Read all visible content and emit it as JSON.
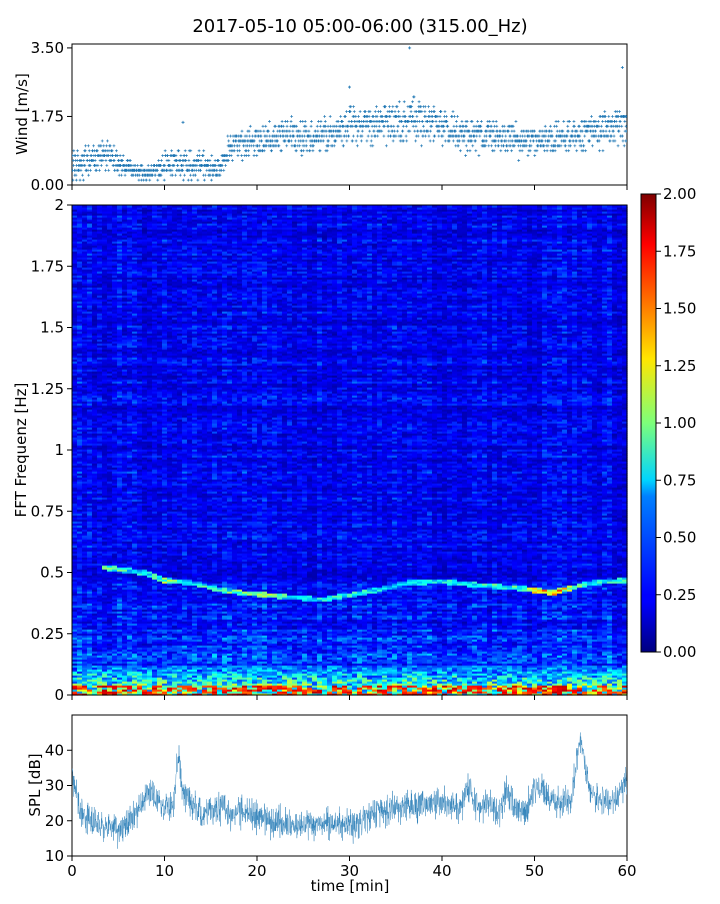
{
  "title": "2017-05-10 05:00-06:00 (315.00_Hz)",
  "colors": {
    "series": "#1f77b4",
    "axis": "#000000"
  },
  "chart_data": [
    {
      "id": "wind",
      "type": "scatter",
      "ylabel": "Wind [m/s]",
      "xlim": [
        0,
        60
      ],
      "ylim": [
        0,
        3.6
      ],
      "yticks": [
        0,
        1.75,
        3.5
      ],
      "ytick_labels": [
        "0.00",
        "1.75",
        "3.50"
      ],
      "xticks": [
        0,
        10,
        20,
        30,
        40,
        50,
        60
      ],
      "x_ticklabels_shown": false,
      "marker": "+",
      "x": [
        0,
        2,
        4,
        6,
        8,
        10,
        12,
        14,
        16,
        17,
        20,
        23,
        25,
        28,
        30,
        32,
        35,
        37,
        38,
        40,
        42,
        45,
        48,
        50,
        52,
        55,
        57,
        59,
        60
      ],
      "y": [
        0.5,
        0.6,
        0.75,
        0.4,
        0.3,
        0.5,
        0.55,
        0.5,
        0.4,
        1.0,
        1.1,
        1.3,
        1.2,
        1.3,
        1.55,
        1.5,
        1.6,
        1.7,
        1.6,
        1.5,
        1.3,
        1.25,
        1.2,
        1.1,
        1.2,
        1.25,
        1.4,
        1.5,
        1.6
      ],
      "spread": [
        0.35,
        0.35,
        0.4,
        0.2,
        0.2,
        0.3,
        0.35,
        0.3,
        0.25,
        0.3,
        0.35,
        0.4,
        0.4,
        0.4,
        0.45,
        0.45,
        0.45,
        0.5,
        0.5,
        0.45,
        0.4,
        0.4,
        0.4,
        0.35,
        0.35,
        0.35,
        0.4,
        0.45,
        0.45
      ],
      "peaks": [
        [
          36.5,
          3.5
        ],
        [
          59.5,
          3.0
        ],
        [
          12,
          1.6
        ],
        [
          30,
          2.5
        ]
      ]
    },
    {
      "id": "spectrogram",
      "type": "heatmap",
      "ylabel": "FFT Frequenz [Hz]",
      "xlim": [
        0,
        60
      ],
      "ylim": [
        0,
        2
      ],
      "yticks": [
        0,
        0.25,
        0.5,
        0.75,
        1,
        1.25,
        1.5,
        1.75,
        2
      ],
      "ytick_labels": [
        "0",
        "0.25",
        "0.5",
        "0.75",
        "1",
        "1.25",
        "1.5",
        "1.75",
        "2"
      ],
      "xticks": [
        0,
        10,
        20,
        30,
        40,
        50,
        60
      ],
      "x_ticklabels_shown": false,
      "colormap": "jet",
      "clim": [
        0,
        2
      ],
      "colorbar_ticks": [
        0,
        0.25,
        0.5,
        0.75,
        1,
        1.25,
        1.5,
        1.75,
        2
      ],
      "colorbar_tick_labels": [
        "0.00",
        "0.25",
        "0.50",
        "0.75",
        "1.00",
        "1.25",
        "1.50",
        "1.75",
        "2.00"
      ],
      "background_value": 0.22,
      "tonal_line": {
        "x": [
          4,
          8,
          10,
          13,
          15,
          18,
          21,
          24,
          27,
          30,
          33,
          36,
          40,
          44,
          48,
          52,
          56,
          60
        ],
        "freq": [
          0.52,
          0.5,
          0.47,
          0.46,
          0.44,
          0.42,
          0.41,
          0.4,
          0.39,
          0.41,
          0.43,
          0.46,
          0.465,
          0.45,
          0.44,
          0.42,
          0.46,
          0.47
        ],
        "value": [
          1.0,
          0.8,
          1.1,
          0.8,
          1.0,
          1.0,
          1.2,
          0.8,
          0.9,
          0.9,
          0.8,
          0.7,
          0.8,
          0.9,
          1.0,
          1.7,
          0.8,
          0.9
        ]
      },
      "low_band": {
        "freq_max": 0.12,
        "value": 1.0,
        "peak_value": 1.9
      }
    },
    {
      "id": "spl",
      "type": "line",
      "ylabel": "SPL [dB]",
      "xlabel": "time [min]",
      "xlim": [
        0,
        60
      ],
      "ylim": [
        10,
        50
      ],
      "yticks": [
        10,
        20,
        30,
        40
      ],
      "ytick_labels": [
        "10",
        "20",
        "30",
        "40"
      ],
      "xticks": [
        0,
        10,
        20,
        30,
        40,
        50,
        60
      ],
      "xtick_labels": [
        "0",
        "10",
        "20",
        "30",
        "40",
        "50",
        "60"
      ],
      "x": [
        0,
        1,
        2,
        4,
        5,
        6,
        7,
        8,
        9,
        10,
        11,
        11.5,
        12,
        14,
        16,
        17,
        18,
        20,
        22,
        24,
        26,
        28,
        30,
        32,
        34,
        36,
        38,
        40,
        42,
        43,
        44,
        45,
        46,
        47,
        48,
        49,
        50,
        52,
        54,
        54.5,
        55,
        55.5,
        56,
        58,
        59,
        60
      ],
      "y": [
        33,
        22,
        20,
        18,
        17,
        19,
        22,
        28,
        27,
        23,
        25,
        40,
        28,
        22,
        24,
        22,
        23,
        21,
        20,
        19,
        19,
        19,
        18,
        21,
        23,
        24,
        25,
        25,
        24,
        30,
        23,
        25,
        22,
        28,
        24,
        22,
        30,
        25,
        26,
        36,
        44,
        35,
        28,
        25,
        27,
        32
      ]
    }
  ]
}
